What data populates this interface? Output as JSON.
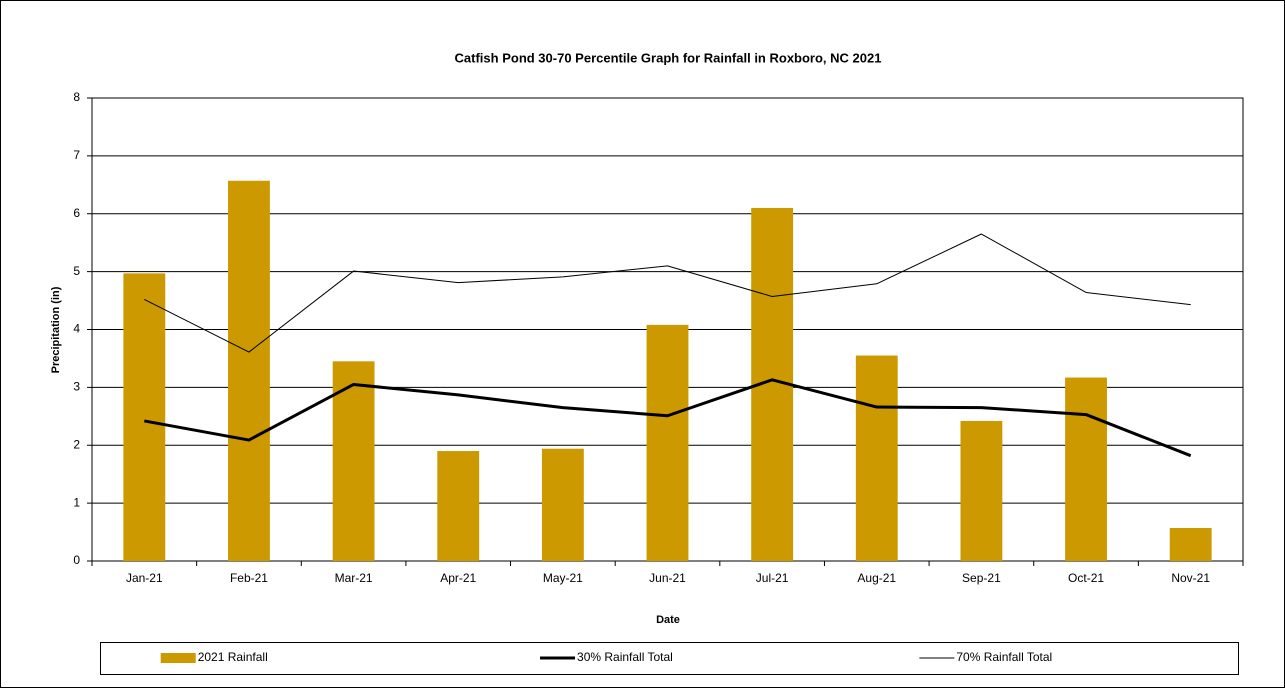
{
  "chart_data": {
    "type": "bar",
    "title": "Catfish Pond 30-70 Percentile Graph for Rainfall in Roxboro, NC 2021",
    "x_label": "Date",
    "y_label": "Precipitation (in)",
    "categories": [
      "Jan-21",
      "Feb-21",
      "Mar-21",
      "Apr-21",
      "May-21",
      "Jun-21",
      "Jul-21",
      "Aug-21",
      "Sep-21",
      "Oct-21",
      "Nov-21"
    ],
    "series": [
      {
        "name": "2021 Rainfall",
        "type": "bar",
        "color": "#cc9900",
        "values": [
          4.97,
          6.57,
          3.45,
          1.9,
          1.94,
          4.08,
          6.1,
          3.55,
          2.42,
          3.17,
          0.57
        ]
      },
      {
        "name": "30% Rainfall Total",
        "type": "line",
        "color": "#000000",
        "line_width": 3,
        "values": [
          2.42,
          2.09,
          3.05,
          2.87,
          2.65,
          2.51,
          3.13,
          2.66,
          2.65,
          2.53,
          1.82
        ]
      },
      {
        "name": "70% Rainfall Total",
        "type": "line",
        "color": "#000000",
        "line_width": 1,
        "values": [
          4.52,
          3.61,
          5.01,
          4.81,
          4.91,
          5.1,
          4.57,
          4.79,
          5.65,
          4.64,
          4.43
        ]
      }
    ],
    "ylim": [
      0,
      8
    ],
    "yticks": [
      0,
      1,
      2,
      3,
      4,
      5,
      6,
      7,
      8
    ],
    "grid": true,
    "legend": "bottom"
  }
}
